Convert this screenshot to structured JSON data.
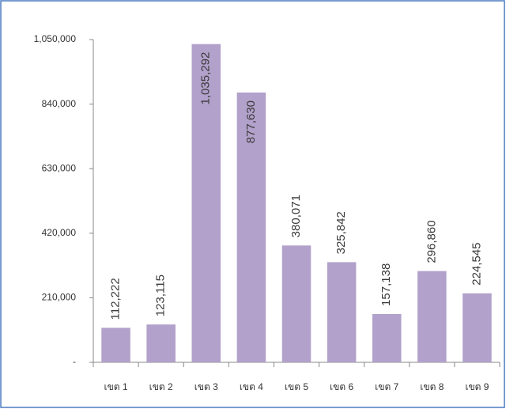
{
  "chart_data": {
    "type": "bar",
    "categories": [
      "เขต 1",
      "เขต 2",
      "เขต 3",
      "เขต 4",
      "เขต 5",
      "เขต 6",
      "เขต 7",
      "เขต 8",
      "เขต 9"
    ],
    "values": [
      112222,
      123115,
      1035292,
      877630,
      380071,
      325842,
      157138,
      296860,
      224545
    ],
    "value_labels": [
      "112,222",
      "123,115",
      "1,035,292",
      "877,630",
      "380,071",
      "325,842",
      "157,138",
      "296,860",
      "224,545"
    ],
    "color": "#b2a1cb",
    "ylim": [
      0,
      1050000
    ],
    "yticks": [
      {
        "value": 0,
        "label": "-"
      },
      {
        "value": 210000,
        "label": "210,000"
      },
      {
        "value": 420000,
        "label": "420,000"
      },
      {
        "value": 630000,
        "label": "630,000"
      },
      {
        "value": 840000,
        "label": "840,000"
      },
      {
        "value": 1050000,
        "label": "1,050,000"
      }
    ]
  }
}
